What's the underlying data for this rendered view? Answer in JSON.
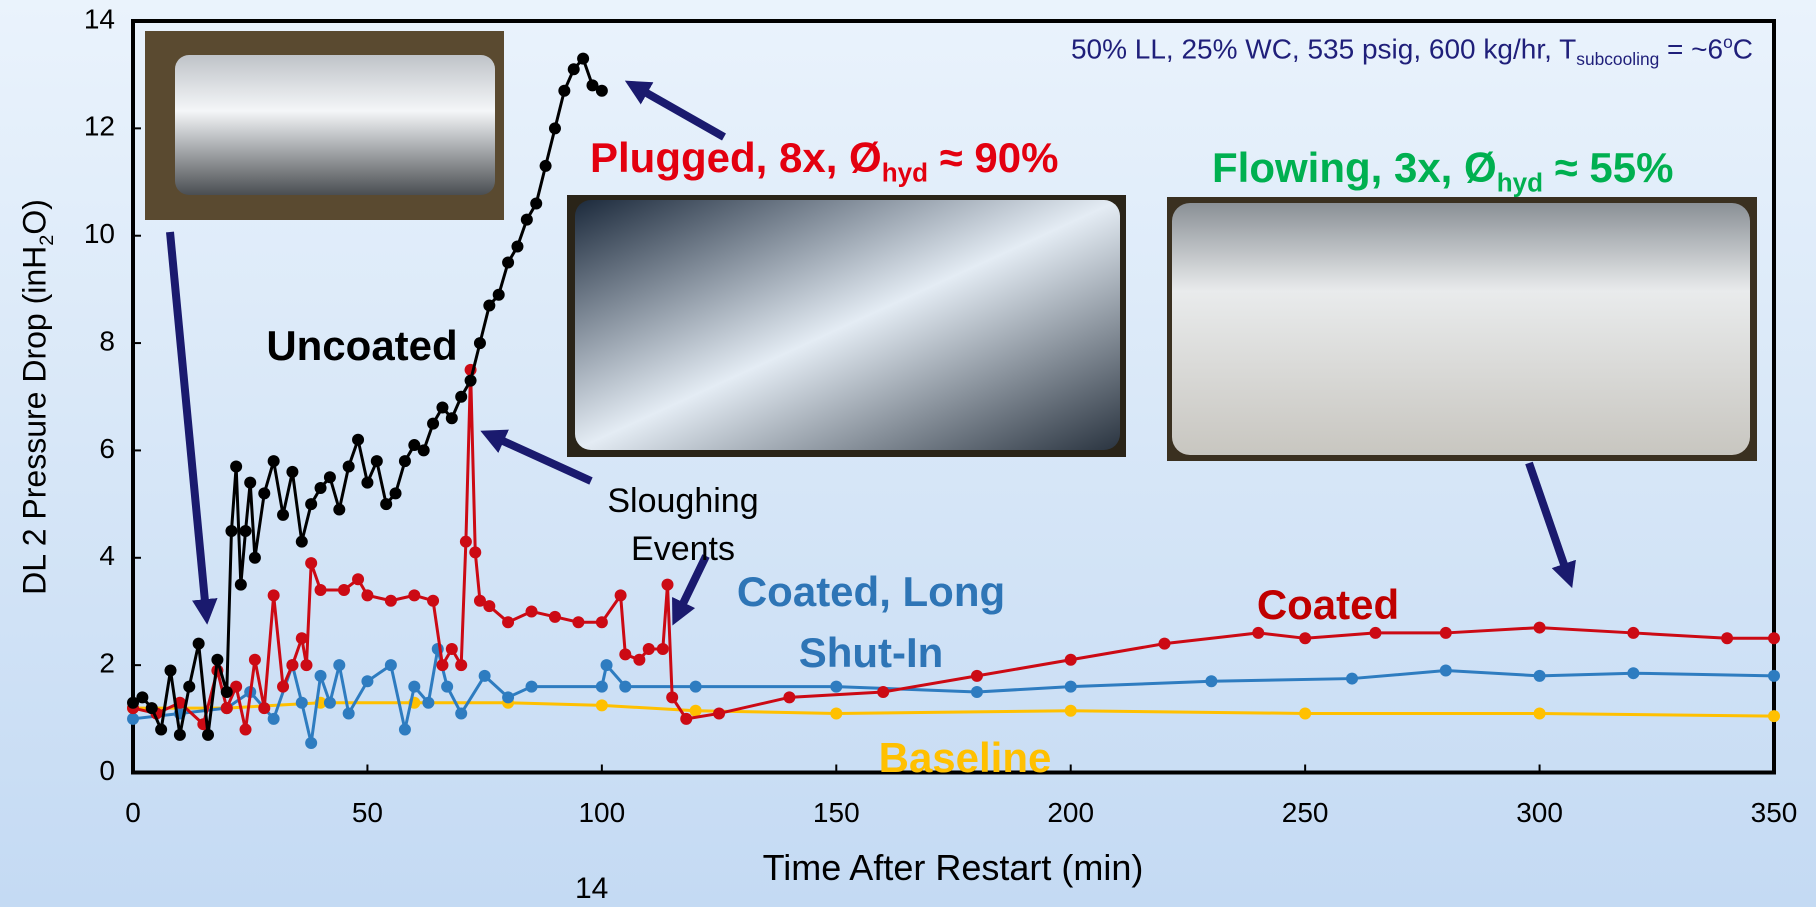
{
  "chart_data": {
    "type": "line",
    "conditions": [
      "50% LL, 25% WC, 535 psig, 600 kg/hr, T",
      "subcooling",
      " = ~6",
      "o",
      "C"
    ],
    "plugged_label": [
      "Plugged, 8x, Ø",
      "hyd",
      " ≈ 90%"
    ],
    "flowing_label": [
      "Flowing, 3x, Ø",
      "hyd",
      " ≈ 55%"
    ],
    "events_label": "Sloughing Events",
    "page_number": "14",
    "x_label": "Time After Restart (min)",
    "y_label": [
      "DL 2 Pressure Drop (inH",
      "2",
      "O)"
    ],
    "xlim": [
      0,
      350
    ],
    "xticks": [
      0,
      50,
      100,
      150,
      200,
      250,
      300,
      350
    ],
    "ylim": [
      0,
      14
    ],
    "yticks": [
      0,
      2,
      4,
      6,
      8,
      10,
      12,
      14
    ],
    "series": [
      {
        "name": "Baseline",
        "color": "#ffc000",
        "x": [
          0,
          20,
          40,
          60,
          80,
          100,
          120,
          150,
          200,
          250,
          300,
          350
        ],
        "values": [
          1.2,
          1.2,
          1.3,
          1.3,
          1.3,
          1.25,
          1.15,
          1.1,
          1.15,
          1.1,
          1.1,
          1.05
        ]
      },
      {
        "name": "Coated, Long Shut-In",
        "color": "#2e7cc0",
        "x": [
          0,
          10,
          20,
          25,
          30,
          34,
          36,
          38,
          40,
          42,
          44,
          46,
          50,
          55,
          58,
          60,
          63,
          65,
          67,
          70,
          75,
          80,
          85,
          100,
          101,
          105,
          120,
          150,
          180,
          200,
          230,
          260,
          280,
          300,
          320,
          350
        ],
        "values": [
          1.0,
          1.1,
          1.2,
          1.5,
          1.0,
          2.0,
          1.3,
          0.55,
          1.8,
          1.3,
          2.0,
          1.1,
          1.7,
          2.0,
          0.8,
          1.6,
          1.3,
          2.3,
          1.6,
          1.1,
          1.8,
          1.4,
          1.6,
          1.6,
          2.0,
          1.6,
          1.6,
          1.6,
          1.5,
          1.6,
          1.7,
          1.75,
          1.9,
          1.8,
          1.85,
          1.8
        ]
      },
      {
        "name": "Coated",
        "color": "#cc0a14",
        "x": [
          0,
          5,
          10,
          15,
          18,
          20,
          22,
          24,
          26,
          28,
          30,
          32,
          34,
          36,
          37,
          38,
          40,
          45,
          48,
          50,
          55,
          60,
          64,
          66,
          68,
          70,
          71,
          72,
          73,
          74,
          76,
          80,
          85,
          90,
          95,
          100,
          104,
          105,
          108,
          110,
          113,
          114,
          115,
          118,
          125,
          140,
          160,
          180,
          200,
          220,
          240,
          250,
          265,
          280,
          300,
          320,
          340,
          350
        ],
        "values": [
          1.2,
          1.1,
          1.3,
          0.9,
          1.9,
          1.2,
          1.6,
          0.8,
          2.1,
          1.2,
          3.3,
          1.6,
          2.0,
          2.5,
          2.0,
          3.9,
          3.4,
          3.4,
          3.6,
          3.3,
          3.2,
          3.3,
          3.2,
          2.0,
          2.3,
          2.0,
          4.3,
          7.5,
          4.1,
          3.2,
          3.1,
          2.8,
          3.0,
          2.9,
          2.8,
          2.8,
          3.3,
          2.2,
          2.1,
          2.3,
          2.3,
          3.5,
          1.4,
          1.0,
          1.1,
          1.4,
          1.5,
          1.8,
          2.1,
          2.4,
          2.6,
          2.5,
          2.6,
          2.6,
          2.7,
          2.6,
          2.5,
          2.5
        ]
      },
      {
        "name": "Uncoated",
        "color": "#000000",
        "x": [
          0,
          2,
          4,
          6,
          8,
          10,
          12,
          14,
          16,
          18,
          20,
          21,
          22,
          23,
          24,
          25,
          26,
          28,
          30,
          32,
          34,
          36,
          38,
          40,
          42,
          44,
          46,
          48,
          50,
          52,
          54,
          56,
          58,
          60,
          62,
          64,
          66,
          68,
          70,
          72,
          74,
          76,
          78,
          80,
          82,
          84,
          86,
          88,
          90,
          92,
          94,
          96,
          98,
          100
        ],
        "values": [
          1.3,
          1.4,
          1.2,
          0.8,
          1.9,
          0.7,
          1.6,
          2.4,
          0.7,
          2.1,
          1.5,
          4.5,
          5.7,
          3.5,
          4.5,
          5.4,
          4.0,
          5.2,
          5.8,
          4.8,
          5.6,
          4.3,
          5.0,
          5.3,
          5.5,
          4.9,
          5.7,
          6.2,
          5.4,
          5.8,
          5.0,
          5.2,
          5.8,
          6.1,
          6.0,
          6.5,
          6.8,
          6.6,
          7.0,
          7.3,
          8.0,
          8.7,
          8.9,
          9.5,
          9.8,
          10.3,
          10.6,
          11.3,
          12.0,
          12.7,
          13.1,
          13.3,
          12.8,
          12.7
        ]
      }
    ]
  }
}
